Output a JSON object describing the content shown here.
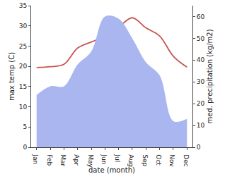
{
  "chart_data": {
    "type": "line",
    "x_label": "date (month)",
    "y_label": "max temp (C)",
    "y2_label": "med. precipitation (kg/m2)",
    "categories": [
      "Jan",
      "Feb",
      "Mar",
      "Apr",
      "May",
      "Jun",
      "Jul",
      "Aug",
      "Sep",
      "Oct",
      "Nov",
      "Dec"
    ],
    "series": [
      {
        "name": "med. precipitation (kg/m2)",
        "type": "area",
        "axis": "y2",
        "color": "#aab6f0",
        "values": [
          24,
          28,
          28,
          38,
          44,
          60,
          59,
          50,
          39,
          33,
          12,
          13
        ]
      },
      {
        "name": "max temp (C)",
        "type": "line",
        "axis": "y",
        "color": "#c8554f",
        "values": [
          19.7,
          19.9,
          20.5,
          24.5,
          26,
          27.5,
          29.7,
          32,
          29.5,
          27.5,
          22.5,
          19.8
        ]
      }
    ],
    "ylim": [
      0,
      35
    ],
    "yticks": [
      0,
      5,
      10,
      15,
      20,
      25,
      30,
      35
    ],
    "y2lim": [
      0,
      65
    ],
    "y2ticks": [
      0,
      10,
      20,
      30,
      40,
      50,
      60
    ],
    "grid": false,
    "legend": "none"
  }
}
